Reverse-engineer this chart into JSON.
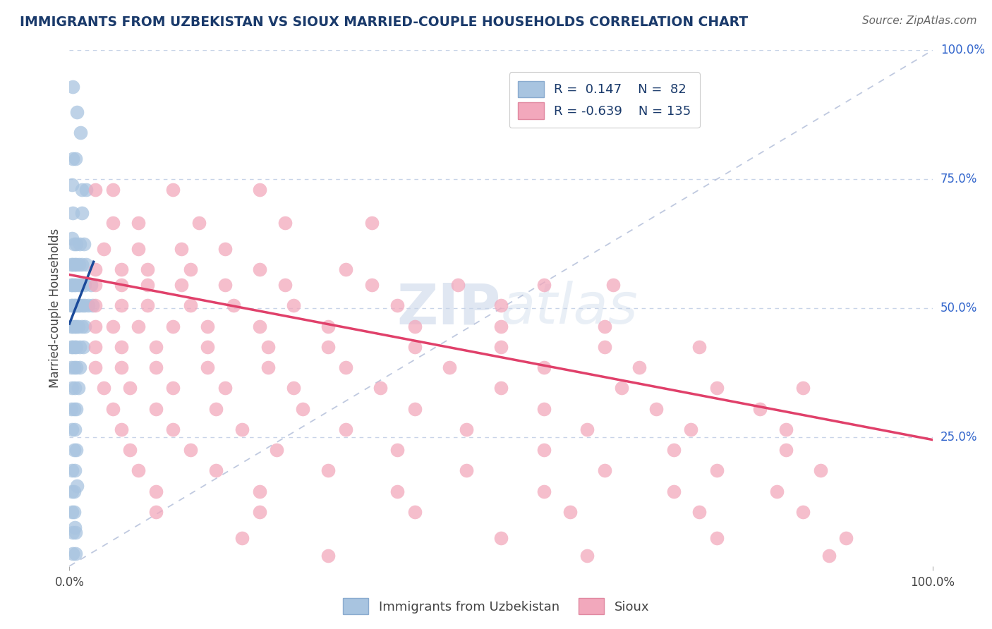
{
  "title": "IMMIGRANTS FROM UZBEKISTAN VS SIOUX MARRIED-COUPLE HOUSEHOLDS CORRELATION CHART",
  "source": "Source: ZipAtlas.com",
  "ylabel": "Married-couple Households",
  "xlim": [
    0.0,
    1.0
  ],
  "ylim": [
    0.0,
    1.0
  ],
  "blue_color": "#a8c4e0",
  "pink_color": "#f2a8bc",
  "blue_line_color": "#1a4a9a",
  "pink_line_color": "#e0406a",
  "title_color": "#1a3a6b",
  "source_color": "#666666",
  "axis_label_color": "#444444",
  "tick_color_right": "#3366cc",
  "grid_color": "#c8d4e8",
  "background_color": "#ffffff",
  "watermark": "ZIPatlas",
  "blue_points": [
    [
      0.004,
      0.93
    ],
    [
      0.009,
      0.88
    ],
    [
      0.013,
      0.84
    ],
    [
      0.004,
      0.79
    ],
    [
      0.007,
      0.79
    ],
    [
      0.003,
      0.74
    ],
    [
      0.014,
      0.73
    ],
    [
      0.019,
      0.73
    ],
    [
      0.004,
      0.685
    ],
    [
      0.014,
      0.685
    ],
    [
      0.003,
      0.635
    ],
    [
      0.005,
      0.625
    ],
    [
      0.008,
      0.625
    ],
    [
      0.012,
      0.625
    ],
    [
      0.017,
      0.625
    ],
    [
      0.002,
      0.585
    ],
    [
      0.004,
      0.585
    ],
    [
      0.006,
      0.585
    ],
    [
      0.008,
      0.585
    ],
    [
      0.011,
      0.585
    ],
    [
      0.014,
      0.585
    ],
    [
      0.019,
      0.585
    ],
    [
      0.002,
      0.545
    ],
    [
      0.003,
      0.545
    ],
    [
      0.005,
      0.545
    ],
    [
      0.007,
      0.545
    ],
    [
      0.01,
      0.545
    ],
    [
      0.013,
      0.545
    ],
    [
      0.018,
      0.545
    ],
    [
      0.025,
      0.545
    ],
    [
      0.002,
      0.505
    ],
    [
      0.003,
      0.505
    ],
    [
      0.005,
      0.505
    ],
    [
      0.006,
      0.505
    ],
    [
      0.008,
      0.505
    ],
    [
      0.01,
      0.505
    ],
    [
      0.012,
      0.505
    ],
    [
      0.015,
      0.505
    ],
    [
      0.018,
      0.505
    ],
    [
      0.022,
      0.505
    ],
    [
      0.027,
      0.505
    ],
    [
      0.002,
      0.465
    ],
    [
      0.004,
      0.465
    ],
    [
      0.006,
      0.465
    ],
    [
      0.008,
      0.465
    ],
    [
      0.01,
      0.465
    ],
    [
      0.014,
      0.465
    ],
    [
      0.018,
      0.465
    ],
    [
      0.002,
      0.425
    ],
    [
      0.004,
      0.425
    ],
    [
      0.006,
      0.425
    ],
    [
      0.008,
      0.425
    ],
    [
      0.012,
      0.425
    ],
    [
      0.016,
      0.425
    ],
    [
      0.002,
      0.385
    ],
    [
      0.005,
      0.385
    ],
    [
      0.008,
      0.385
    ],
    [
      0.012,
      0.385
    ],
    [
      0.003,
      0.345
    ],
    [
      0.006,
      0.345
    ],
    [
      0.01,
      0.345
    ],
    [
      0.002,
      0.305
    ],
    [
      0.005,
      0.305
    ],
    [
      0.008,
      0.305
    ],
    [
      0.003,
      0.265
    ],
    [
      0.006,
      0.265
    ],
    [
      0.005,
      0.225
    ],
    [
      0.008,
      0.225
    ],
    [
      0.003,
      0.185
    ],
    [
      0.006,
      0.185
    ],
    [
      0.003,
      0.145
    ],
    [
      0.005,
      0.145
    ],
    [
      0.003,
      0.105
    ],
    [
      0.005,
      0.105
    ],
    [
      0.004,
      0.065
    ],
    [
      0.007,
      0.065
    ],
    [
      0.004,
      0.025
    ],
    [
      0.007,
      0.025
    ],
    [
      0.009,
      0.155
    ],
    [
      0.006,
      0.075
    ]
  ],
  "pink_points": [
    [
      0.03,
      0.73
    ],
    [
      0.05,
      0.73
    ],
    [
      0.12,
      0.73
    ],
    [
      0.22,
      0.73
    ],
    [
      0.05,
      0.665
    ],
    [
      0.08,
      0.665
    ],
    [
      0.15,
      0.665
    ],
    [
      0.25,
      0.665
    ],
    [
      0.35,
      0.665
    ],
    [
      0.04,
      0.615
    ],
    [
      0.08,
      0.615
    ],
    [
      0.13,
      0.615
    ],
    [
      0.18,
      0.615
    ],
    [
      0.03,
      0.575
    ],
    [
      0.06,
      0.575
    ],
    [
      0.09,
      0.575
    ],
    [
      0.14,
      0.575
    ],
    [
      0.22,
      0.575
    ],
    [
      0.32,
      0.575
    ],
    [
      0.03,
      0.545
    ],
    [
      0.06,
      0.545
    ],
    [
      0.09,
      0.545
    ],
    [
      0.13,
      0.545
    ],
    [
      0.18,
      0.545
    ],
    [
      0.25,
      0.545
    ],
    [
      0.35,
      0.545
    ],
    [
      0.45,
      0.545
    ],
    [
      0.55,
      0.545
    ],
    [
      0.63,
      0.545
    ],
    [
      0.03,
      0.505
    ],
    [
      0.06,
      0.505
    ],
    [
      0.09,
      0.505
    ],
    [
      0.14,
      0.505
    ],
    [
      0.19,
      0.505
    ],
    [
      0.26,
      0.505
    ],
    [
      0.38,
      0.505
    ],
    [
      0.5,
      0.505
    ],
    [
      0.03,
      0.465
    ],
    [
      0.05,
      0.465
    ],
    [
      0.08,
      0.465
    ],
    [
      0.12,
      0.465
    ],
    [
      0.16,
      0.465
    ],
    [
      0.22,
      0.465
    ],
    [
      0.3,
      0.465
    ],
    [
      0.4,
      0.465
    ],
    [
      0.5,
      0.465
    ],
    [
      0.62,
      0.465
    ],
    [
      0.03,
      0.425
    ],
    [
      0.06,
      0.425
    ],
    [
      0.1,
      0.425
    ],
    [
      0.16,
      0.425
    ],
    [
      0.23,
      0.425
    ],
    [
      0.3,
      0.425
    ],
    [
      0.4,
      0.425
    ],
    [
      0.5,
      0.425
    ],
    [
      0.62,
      0.425
    ],
    [
      0.73,
      0.425
    ],
    [
      0.03,
      0.385
    ],
    [
      0.06,
      0.385
    ],
    [
      0.1,
      0.385
    ],
    [
      0.16,
      0.385
    ],
    [
      0.23,
      0.385
    ],
    [
      0.32,
      0.385
    ],
    [
      0.44,
      0.385
    ],
    [
      0.55,
      0.385
    ],
    [
      0.66,
      0.385
    ],
    [
      0.04,
      0.345
    ],
    [
      0.07,
      0.345
    ],
    [
      0.12,
      0.345
    ],
    [
      0.18,
      0.345
    ],
    [
      0.26,
      0.345
    ],
    [
      0.36,
      0.345
    ],
    [
      0.5,
      0.345
    ],
    [
      0.64,
      0.345
    ],
    [
      0.75,
      0.345
    ],
    [
      0.85,
      0.345
    ],
    [
      0.05,
      0.305
    ],
    [
      0.1,
      0.305
    ],
    [
      0.17,
      0.305
    ],
    [
      0.27,
      0.305
    ],
    [
      0.4,
      0.305
    ],
    [
      0.55,
      0.305
    ],
    [
      0.68,
      0.305
    ],
    [
      0.8,
      0.305
    ],
    [
      0.06,
      0.265
    ],
    [
      0.12,
      0.265
    ],
    [
      0.2,
      0.265
    ],
    [
      0.32,
      0.265
    ],
    [
      0.46,
      0.265
    ],
    [
      0.6,
      0.265
    ],
    [
      0.72,
      0.265
    ],
    [
      0.83,
      0.265
    ],
    [
      0.07,
      0.225
    ],
    [
      0.14,
      0.225
    ],
    [
      0.24,
      0.225
    ],
    [
      0.38,
      0.225
    ],
    [
      0.55,
      0.225
    ],
    [
      0.7,
      0.225
    ],
    [
      0.83,
      0.225
    ],
    [
      0.08,
      0.185
    ],
    [
      0.17,
      0.185
    ],
    [
      0.3,
      0.185
    ],
    [
      0.46,
      0.185
    ],
    [
      0.62,
      0.185
    ],
    [
      0.75,
      0.185
    ],
    [
      0.87,
      0.185
    ],
    [
      0.1,
      0.145
    ],
    [
      0.22,
      0.145
    ],
    [
      0.38,
      0.145
    ],
    [
      0.55,
      0.145
    ],
    [
      0.7,
      0.145
    ],
    [
      0.82,
      0.145
    ],
    [
      0.1,
      0.105
    ],
    [
      0.22,
      0.105
    ],
    [
      0.4,
      0.105
    ],
    [
      0.58,
      0.105
    ],
    [
      0.73,
      0.105
    ],
    [
      0.85,
      0.105
    ],
    [
      0.2,
      0.055
    ],
    [
      0.5,
      0.055
    ],
    [
      0.75,
      0.055
    ],
    [
      0.9,
      0.055
    ],
    [
      0.3,
      0.02
    ],
    [
      0.6,
      0.02
    ],
    [
      0.88,
      0.02
    ]
  ],
  "blue_line_x": [
    0.0,
    0.028
  ],
  "blue_line_y": [
    0.47,
    0.59
  ],
  "pink_line_x": [
    0.0,
    1.0
  ],
  "pink_line_y": [
    0.565,
    0.245
  ]
}
